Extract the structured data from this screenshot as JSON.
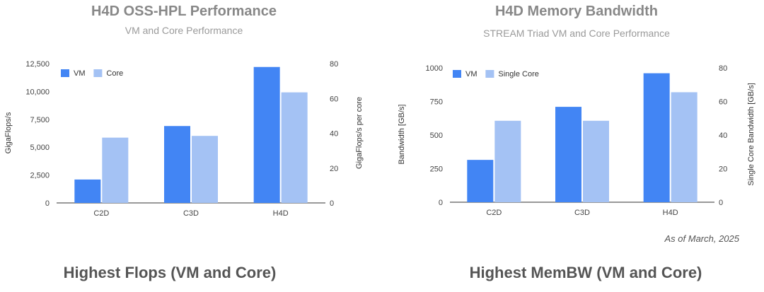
{
  "footer_note": "As of March, 2025",
  "captions": [
    "Highest Flops (VM and Core)",
    "Highest MemBW (VM and Core)"
  ],
  "chart_data": [
    {
      "type": "bar",
      "title": "H4D OSS-HPL Performance",
      "subtitle": "VM and Core Performance",
      "categories": [
        "C2D",
        "C3D",
        "H4D"
      ],
      "series": [
        {
          "name": "VM",
          "axis": "left",
          "color": "#4285f4",
          "values": [
            2100,
            6900,
            12200
          ]
        },
        {
          "name": "Core",
          "axis": "right",
          "color": "#a4c2f4",
          "values": [
            37.5,
            38.5,
            63.5
          ]
        }
      ],
      "ylabel": "GigaFlops/s",
      "y2label": "GigaFlops/s per core",
      "ylim": [
        0,
        12500
      ],
      "y2lim": [
        0,
        80
      ],
      "yticks": [
        "0",
        "2,500",
        "5,000",
        "7,500",
        "10,000",
        "12,500"
      ],
      "y2ticks": [
        "0",
        "20",
        "40",
        "60",
        "80"
      ],
      "legend_position": "top-left",
      "grid": false
    },
    {
      "type": "bar",
      "title": "H4D Memory Bandwidth",
      "subtitle": "STREAM Triad VM and Core Performance",
      "categories": [
        "C2D",
        "C3D",
        "H4D"
      ],
      "series": [
        {
          "name": "VM",
          "axis": "left",
          "color": "#4285f4",
          "values": [
            315,
            710,
            960
          ]
        },
        {
          "name": "Single Core",
          "axis": "right",
          "color": "#a4c2f4",
          "values": [
            48.5,
            48.5,
            65.5
          ]
        }
      ],
      "ylabel": "Bandwidth [GB/s]",
      "y2label": "Single Core Bandwidth [GB/s]",
      "ylim": [
        0,
        1000
      ],
      "y2lim": [
        0,
        80
      ],
      "yticks": [
        "0",
        "250",
        "500",
        "750",
        "1000"
      ],
      "y2ticks": [
        "0",
        "20",
        "40",
        "60",
        "80"
      ],
      "legend_position": "top-left",
      "grid": false
    }
  ]
}
